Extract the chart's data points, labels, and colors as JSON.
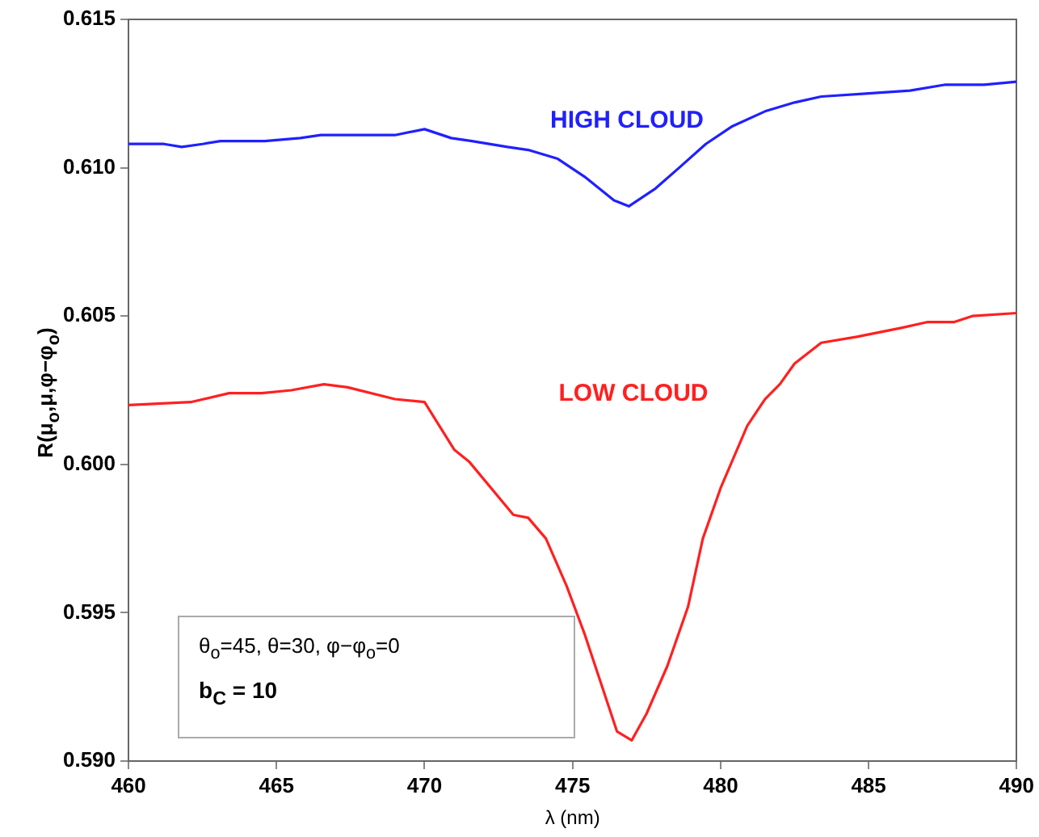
{
  "chart_data": {
    "type": "line",
    "xlabel": "λ (nm)",
    "ylabel": "R(μ$_{o}$,μ,φ−φ$_{o}$)",
    "xlim": [
      460,
      490
    ],
    "xticks": [
      460,
      465,
      470,
      475,
      480,
      485,
      490
    ],
    "ylim": [
      0.59,
      0.615
    ],
    "yticks": [
      {
        "value": 0.59,
        "label": "0.590"
      },
      0.595,
      {
        "value": 0.6,
        "label": "0.600"
      },
      0.605,
      {
        "value": 0.61,
        "label": "0.610"
      },
      0.615
    ],
    "grid": false,
    "legend": false,
    "marker": "none",
    "line_style": "solid",
    "annotations": [
      "θ$_{o}$=45, θ=30, φ−φ$_{o}$=0",
      "b$_{C}$ = 10"
    ],
    "series": [
      {
        "name": "HIGH CLOUD",
        "color": "#2020ff",
        "x": [
          460,
          461.2,
          461.8,
          462.5,
          463.1,
          464.6,
          465.8,
          466.5,
          469,
          470,
          470.9,
          471.6,
          472.8,
          473.5,
          474.5,
          475.4,
          476.4,
          476.9,
          477.8,
          478.6,
          479.5,
          480.4,
          481.5,
          482.5,
          483.4,
          484.9,
          486.4,
          487.6,
          488.9,
          490
        ],
        "values": [
          0.6108,
          0.6108,
          0.6107,
          0.6108,
          0.6109,
          0.6109,
          0.611,
          0.6111,
          0.6111,
          0.6113,
          0.611,
          0.6109,
          0.6107,
          0.6106,
          0.6103,
          0.6097,
          0.6089,
          0.6087,
          0.6093,
          0.61,
          0.6108,
          0.6114,
          0.6119,
          0.6122,
          0.6124,
          0.6125,
          0.6126,
          0.6128,
          0.6128,
          0.6129
        ]
      },
      {
        "name": "LOW CLOUD",
        "color": "#ff2020",
        "x": [
          460,
          462.1,
          463.4,
          464.5,
          465.5,
          466.6,
          467.4,
          469,
          470,
          470.5,
          471,
          471.5,
          473,
          473.5,
          474.1,
          474.8,
          475.4,
          476.5,
          477,
          477.5,
          478.2,
          478.9,
          479.4,
          480,
          480.9,
          481.5,
          482,
          482.5,
          483.4,
          484.6,
          486.1,
          487,
          487.9,
          488.5,
          490
        ],
        "values": [
          0.602,
          0.6021,
          0.6024,
          0.6024,
          0.6025,
          0.6027,
          0.6026,
          0.6022,
          0.6021,
          0.6013,
          0.6005,
          0.6001,
          0.5983,
          0.5982,
          0.5975,
          0.5959,
          0.5943,
          0.591,
          0.5907,
          0.5916,
          0.5932,
          0.5952,
          0.5975,
          0.5992,
          0.6013,
          0.6022,
          0.6027,
          0.6034,
          0.6041,
          0.6043,
          0.6046,
          0.6048,
          0.6048,
          0.605,
          0.6051
        ]
      }
    ]
  }
}
